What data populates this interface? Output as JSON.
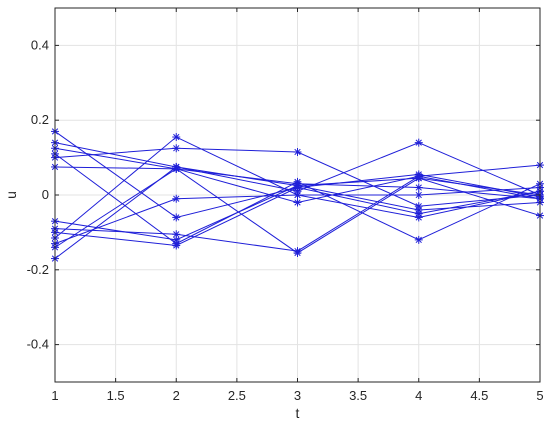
{
  "chart_data": {
    "type": "line",
    "xlabel": "t",
    "ylabel": "u",
    "xlim": [
      1,
      5
    ],
    "ylim": [
      -0.5,
      0.5
    ],
    "xticks": [
      1,
      1.5,
      2,
      2.5,
      3,
      3.5,
      4,
      4.5,
      5
    ],
    "yticks": [
      -0.4,
      -0.2,
      0,
      0.2,
      0.4
    ],
    "xtick_labels": [
      "1",
      "1.5",
      "2",
      "2.5",
      "3",
      "3.5",
      "4",
      "4.5",
      "5"
    ],
    "ytick_labels": [
      "-0.4",
      "-0.2",
      "0",
      "0.2",
      "0.4"
    ],
    "grid": true,
    "marker": "*",
    "line_color": "#1f1fd8",
    "x": [
      1,
      2,
      3,
      4,
      5
    ],
    "series": [
      {
        "values": [
          0.17,
          -0.06,
          0.02,
          -0.05,
          0.01
        ]
      },
      {
        "values": [
          0.14,
          0.075,
          0.01,
          0.14,
          0.0
        ]
      },
      {
        "values": [
          0.125,
          0.07,
          0.03,
          0.02,
          -0.01
        ]
      },
      {
        "values": [
          0.11,
          -0.13,
          0.035,
          -0.12,
          0.03
        ]
      },
      {
        "values": [
          0.1,
          0.125,
          0.115,
          -0.03,
          0.0
        ]
      },
      {
        "values": [
          0.075,
          0.07,
          -0.02,
          0.05,
          0.08
        ]
      },
      {
        "values": [
          -0.07,
          -0.12,
          0.025,
          0.045,
          -0.055
        ]
      },
      {
        "values": [
          -0.1,
          -0.135,
          0.02,
          0.055,
          -0.005
        ]
      },
      {
        "values": [
          -0.115,
          0.155,
          0.0,
          0.0,
          0.02
        ]
      },
      {
        "values": [
          -0.13,
          -0.01,
          0.0,
          -0.06,
          0.01
        ]
      },
      {
        "values": [
          -0.14,
          0.07,
          -0.155,
          0.045,
          0.0
        ]
      },
      {
        "values": [
          -0.17,
          0.075,
          0.025,
          -0.04,
          -0.02
        ]
      },
      {
        "values": [
          -0.09,
          -0.105,
          -0.15,
          0.05,
          -0.01
        ]
      }
    ]
  }
}
